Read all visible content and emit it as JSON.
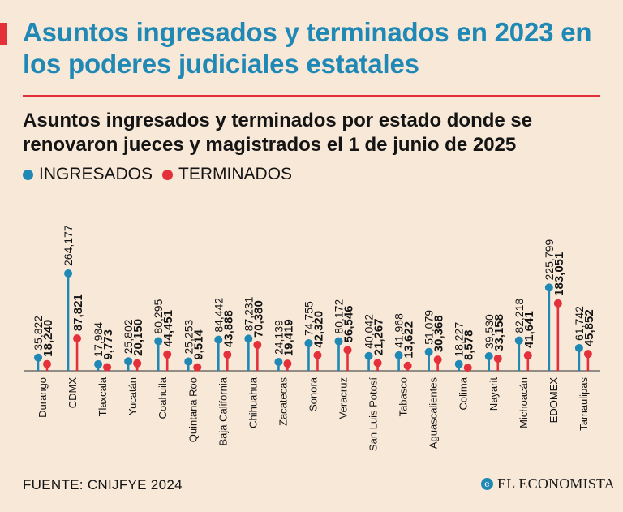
{
  "header": {
    "title": "Asuntos ingresados y terminados en 2023 en los poderes judiciales estatales"
  },
  "colors": {
    "ingresados": "#1f88b5",
    "terminados": "#e3303a",
    "text": "#141414",
    "background": "#f8e8d8"
  },
  "footer": {
    "source": "FUENTE: CNIJFYE 2024",
    "brand": "EL ECONOMISTA",
    "brand_icon": "e"
  },
  "chart_data": {
    "type": "scatter",
    "title": "Asuntos ingresados y terminados por estado donde se renovaron jueces y magistrados el 1 de junio de 2025",
    "legend": [
      {
        "name": "INGRESADOS",
        "color": "#1f88b5"
      },
      {
        "name": "TERMINADOS",
        "color": "#e3303a"
      }
    ],
    "categories": [
      "Durango",
      "CDMX",
      "Tlaxcala",
      "Yucatán",
      "Coahuila",
      "Quintana Roo",
      "Baja California",
      "Chihuahua",
      "Zacatecas",
      "Sonora",
      "Veracruz",
      "San Luis Potosí",
      "Tabasco",
      "Aguascalientes",
      "Colima",
      "Nayarit",
      "Michoacán",
      "EDOMEX",
      "Tamaulipas"
    ],
    "series": [
      {
        "name": "INGRESADOS",
        "values": [
          35822,
          264177,
          17984,
          25802,
          80295,
          25253,
          84442,
          87231,
          24139,
          74755,
          80172,
          40042,
          41968,
          51079,
          18227,
          39530,
          82218,
          225799,
          61742
        ],
        "labels": [
          "35,822",
          "264,177",
          "17,984",
          "25,802",
          "80,295",
          "25,253",
          "84,442",
          "87,231",
          "24,139",
          "74,755",
          "80,172",
          "40,042",
          "41,968",
          "51,079",
          "18,227",
          "39,530",
          "82,218",
          "225,799",
          "61,742"
        ]
      },
      {
        "name": "TERMINADOS",
        "values": [
          18240,
          87821,
          9773,
          20150,
          44451,
          9514,
          43888,
          70380,
          19419,
          42320,
          56546,
          21267,
          13622,
          30368,
          8578,
          33158,
          41641,
          183051,
          45852
        ],
        "labels": [
          "18,240",
          "87,821",
          "9,773",
          "20,150",
          "44,451",
          "9,514",
          "43,888",
          "70,380",
          "19,419",
          "42,320",
          "56,546",
          "21,267",
          "13,622",
          "30,368",
          "8,578",
          "33,158",
          "41,641",
          "183,051",
          "45,852"
        ]
      }
    ],
    "ylim": [
      0,
      264177
    ]
  }
}
